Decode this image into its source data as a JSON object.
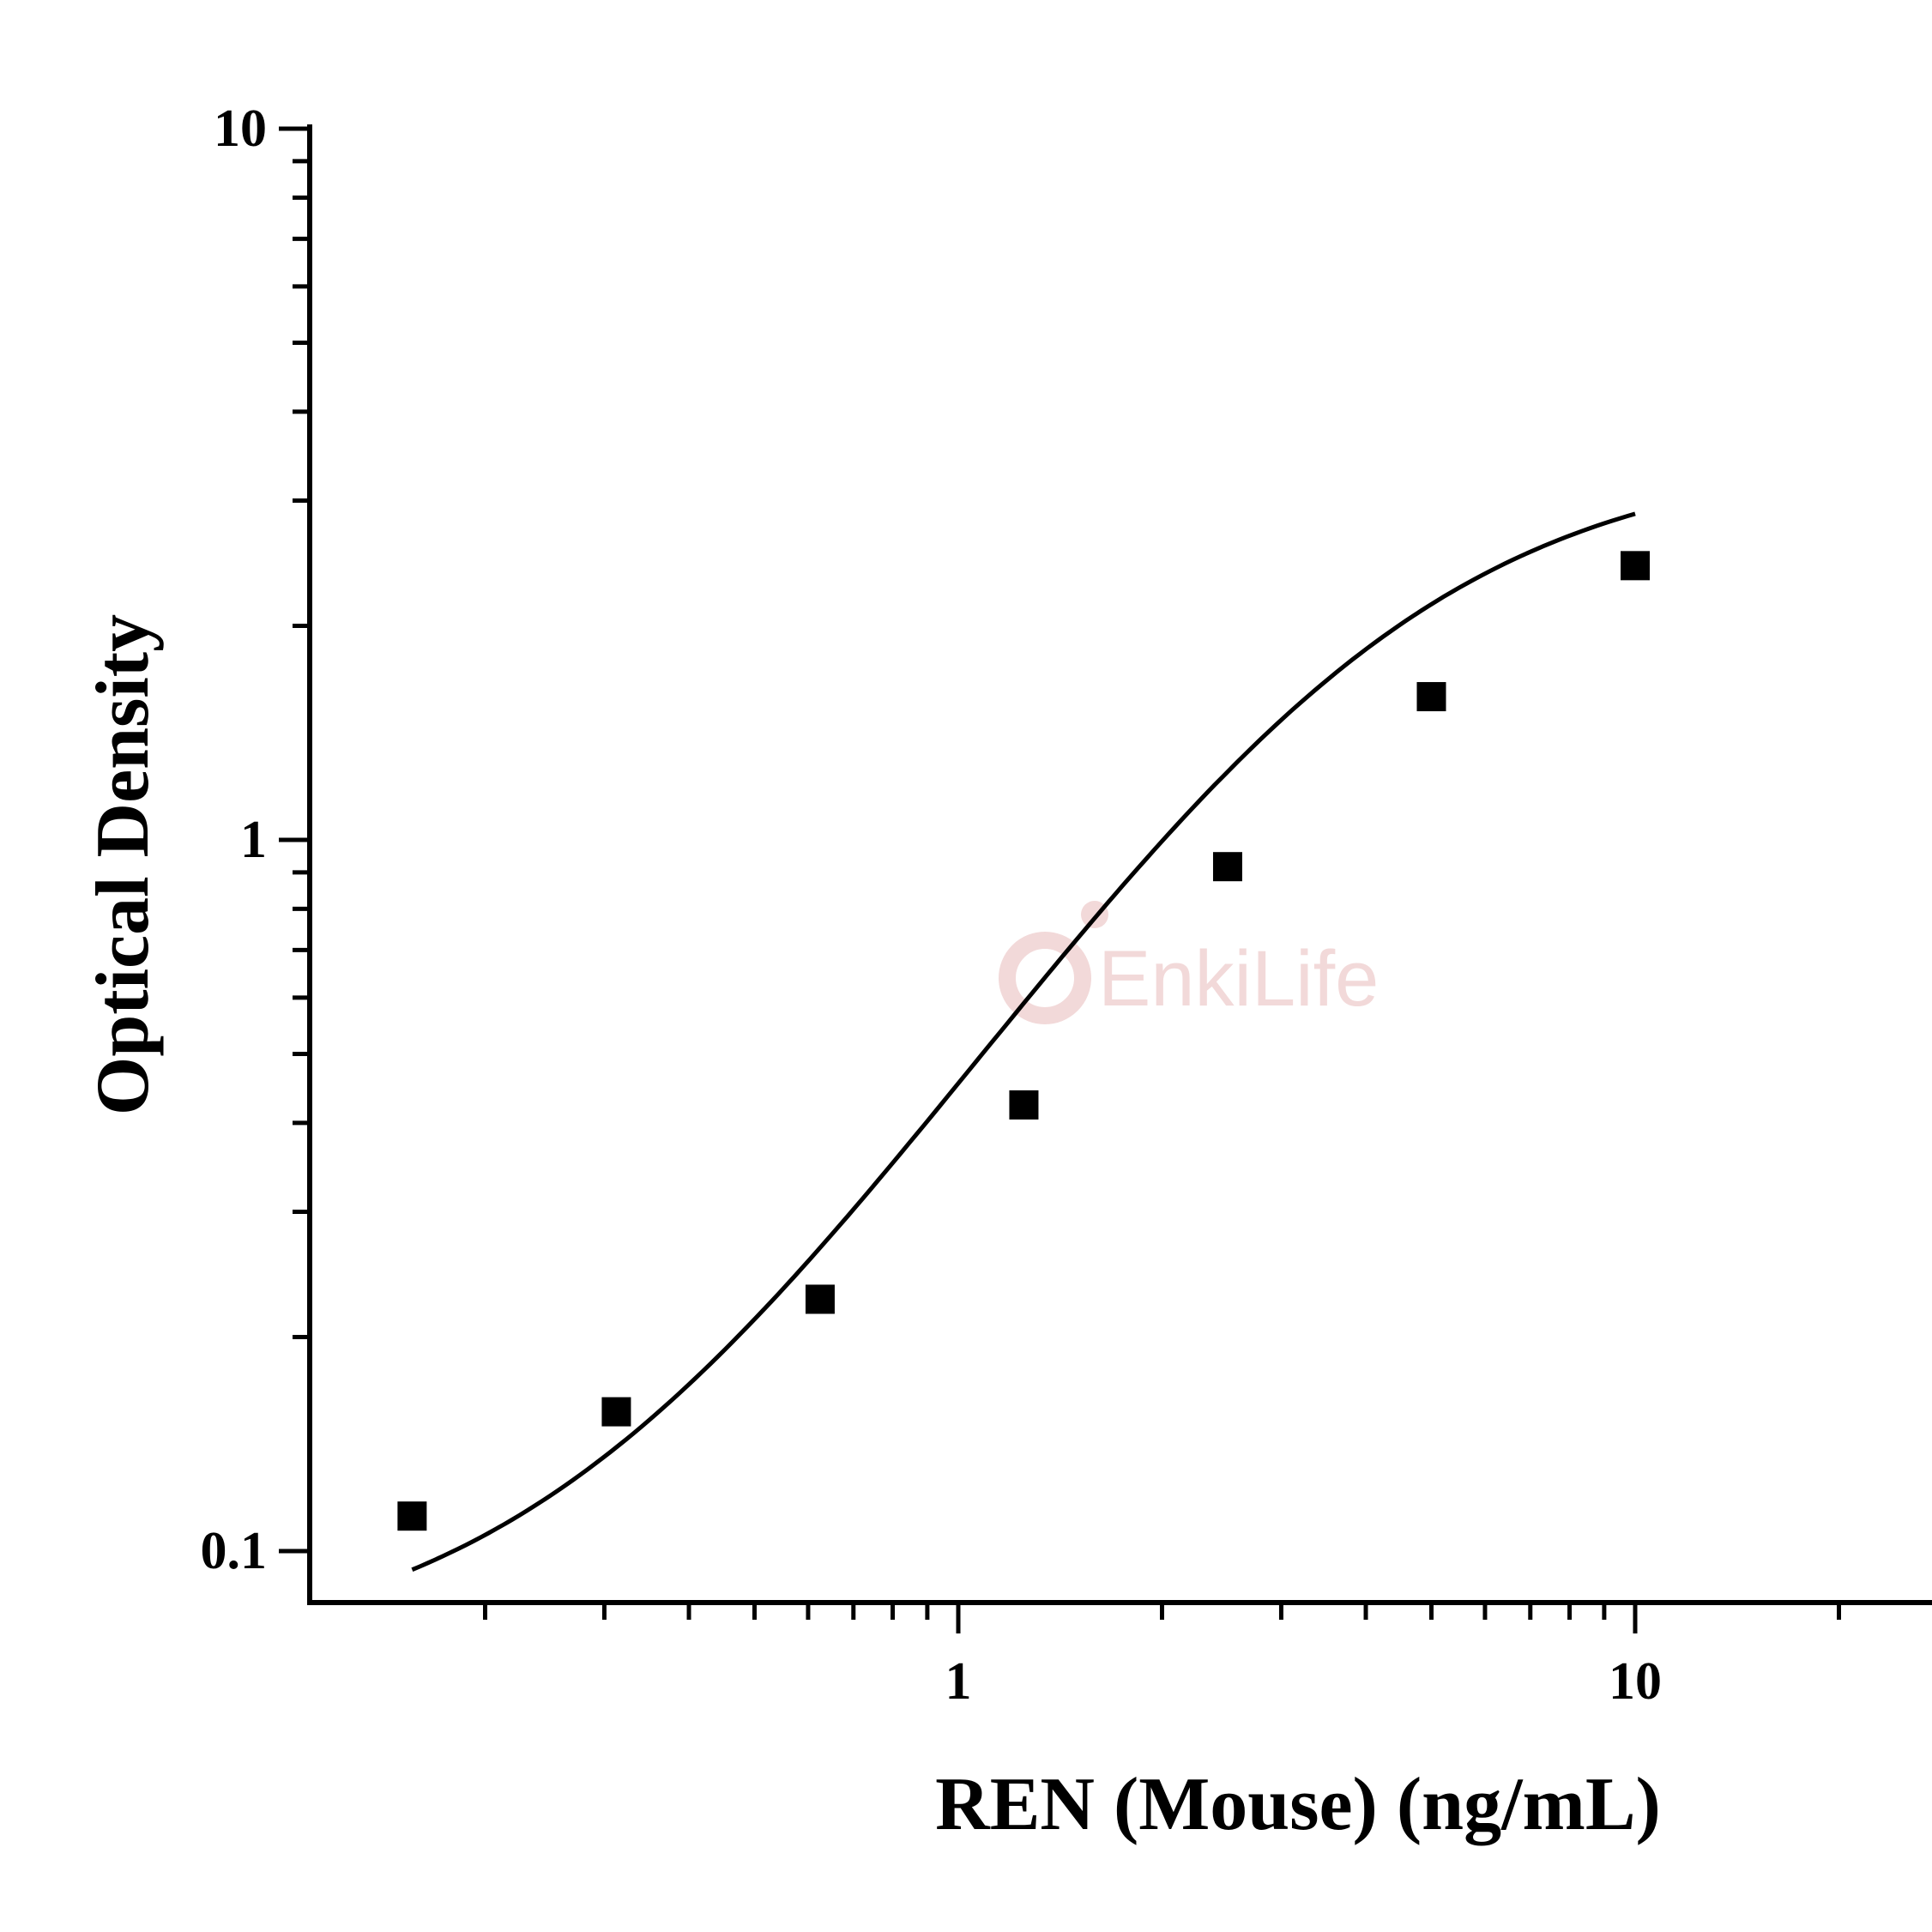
{
  "chart_data": {
    "type": "scatter",
    "x_scale": "log",
    "y_scale": "log",
    "xlim": [
      0.156,
      25
    ],
    "ylim": [
      0.1,
      10
    ],
    "x_ticks": [
      {
        "value": 1,
        "label": "1"
      },
      {
        "value": 10,
        "label": "10"
      }
    ],
    "y_ticks": [
      {
        "value": 0.1,
        "label": "0.1"
      },
      {
        "value": 1,
        "label": "1"
      },
      {
        "value": 10,
        "label": "10"
      }
    ],
    "xlabel": "REN (Mouse) (ng/mL)",
    "ylabel": "Optical Density",
    "points": [
      {
        "x": 0.156,
        "y": 0.112
      },
      {
        "x": 0.3125,
        "y": 0.157
      },
      {
        "x": 0.625,
        "y": 0.226
      },
      {
        "x": 1.25,
        "y": 0.424
      },
      {
        "x": 2.5,
        "y": 0.917
      },
      {
        "x": 5,
        "y": 1.59
      },
      {
        "x": 10,
        "y": 2.43
      }
    ],
    "fit_curve": {
      "type": "4PL",
      "A": 0.07,
      "B": 1.55,
      "C": 3.8,
      "D": 3.5
    },
    "grid": false,
    "legend": "none",
    "marker": "square",
    "colors": {
      "markers": "#000000",
      "curve": "#000000",
      "axes": "#000000"
    }
  },
  "watermark": {
    "text": "EnkiLife",
    "color": "#f2d9d9"
  }
}
